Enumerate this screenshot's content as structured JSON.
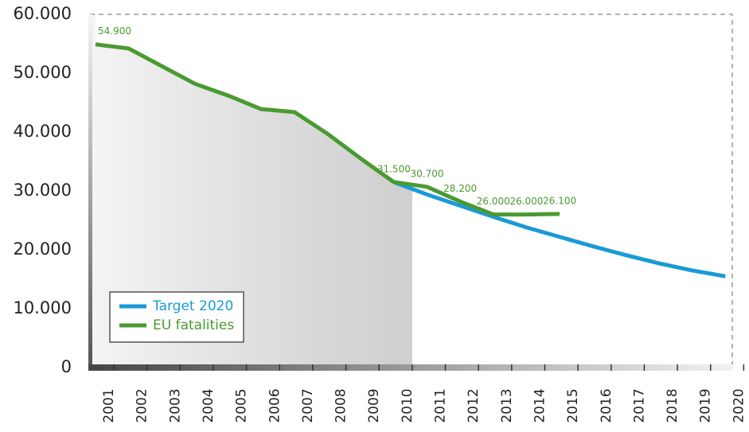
{
  "chart_data": {
    "type": "line",
    "categories": [
      "2001",
      "2002",
      "2003",
      "2004",
      "2005",
      "2006",
      "2007",
      "2008",
      "2009",
      "2010",
      "2011",
      "2012",
      "2013",
      "2014",
      "2015",
      "2016",
      "2017",
      "2018",
      "2019",
      "2020"
    ],
    "series": [
      {
        "name": "Target 2020",
        "color": "#1b9ad6",
        "values": [
          null,
          null,
          null,
          null,
          null,
          null,
          null,
          null,
          null,
          31500,
          29400,
          27500,
          25600,
          23800,
          22200,
          20600,
          19100,
          17700,
          16500,
          15500
        ]
      },
      {
        "name": "EU fatalities",
        "color": "#4a9a32",
        "values": [
          54900,
          54200,
          51200,
          48200,
          46200,
          43900,
          43400,
          39700,
          35500,
          31500,
          30700,
          28200,
          26000,
          26000,
          26100,
          null,
          null,
          null,
          null,
          null
        ],
        "value_labels": [
          "54.900",
          null,
          null,
          null,
          null,
          null,
          null,
          null,
          null,
          "31.500",
          "30.700",
          "28.200",
          "26.000",
          "26.000",
          "26.100",
          null,
          null,
          null,
          null,
          null
        ]
      }
    ],
    "ylim": [
      0,
      60000
    ],
    "yticks": [
      {
        "value": 0,
        "label": "0"
      },
      {
        "value": 10000,
        "label": "10.000"
      },
      {
        "value": 20000,
        "label": "20.000"
      },
      {
        "value": 30000,
        "label": "30.000"
      },
      {
        "value": 40000,
        "label": "40.000"
      },
      {
        "value": 50000,
        "label": "50.000"
      },
      {
        "value": 60000,
        "label": "60.000"
      }
    ],
    "legend": "bottom-left"
  }
}
